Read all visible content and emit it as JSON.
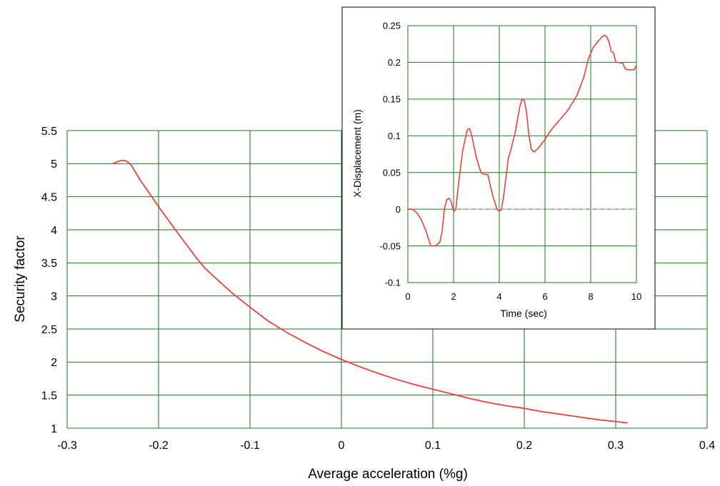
{
  "chart_data": [
    {
      "type": "line",
      "xlabel": "Average acceleration (%g)",
      "ylabel": "Security factor",
      "xlim": [
        -0.3,
        0.4
      ],
      "ylim": [
        1,
        5.5
      ],
      "x_ticks": [
        -0.3,
        -0.2,
        -0.1,
        0,
        0.1,
        0.2,
        0.3,
        0.4
      ],
      "x_tick_labels": [
        "-0.3",
        "-0.2",
        "-0.1",
        "0",
        "0.1",
        "0.2",
        "0.3",
        "0.4"
      ],
      "y_ticks": [
        1,
        1.5,
        2,
        2.5,
        3,
        3.5,
        4,
        4.5,
        5,
        5.5
      ],
      "y_tick_labels": [
        "1",
        "1.5",
        "2",
        "2.5",
        "3",
        "3.5",
        "4",
        "4.5",
        "5",
        "5.5"
      ],
      "grid": true,
      "grid_color": "#1a7a1a",
      "series": [
        {
          "color": "#e8413b",
          "x": [
            -0.25,
            -0.245,
            -0.24,
            -0.235,
            -0.23,
            -0.22,
            -0.21,
            -0.2,
            -0.18,
            -0.16,
            -0.15,
            -0.14,
            -0.12,
            -0.1,
            -0.08,
            -0.06,
            -0.04,
            -0.02,
            0,
            0.02,
            0.04,
            0.06,
            0.08,
            0.1,
            0.12,
            0.14,
            0.16,
            0.18,
            0.2,
            0.22,
            0.24,
            0.26,
            0.28,
            0.3,
            0.313
          ],
          "y": [
            5.0,
            5.03,
            5.05,
            5.04,
            4.98,
            4.75,
            4.55,
            4.35,
            3.97,
            3.6,
            3.43,
            3.3,
            3.05,
            2.83,
            2.62,
            2.45,
            2.3,
            2.16,
            2.04,
            1.93,
            1.83,
            1.74,
            1.66,
            1.59,
            1.52,
            1.45,
            1.39,
            1.34,
            1.3,
            1.25,
            1.21,
            1.17,
            1.13,
            1.1,
            1.08
          ]
        }
      ]
    },
    {
      "type": "line",
      "xlabel": "Time (sec)",
      "ylabel": "X-Displacement (m)",
      "xlim": [
        0,
        10
      ],
      "ylim": [
        -0.1,
        0.25
      ],
      "x_ticks": [
        0,
        2,
        4,
        6,
        8,
        10
      ],
      "x_tick_labels": [
        "0",
        "2",
        "4",
        "6",
        "8",
        "10"
      ],
      "y_ticks": [
        -0.1,
        -0.05,
        0,
        0.05,
        0.1,
        0.15,
        0.2,
        0.25
      ],
      "y_tick_labels": [
        "-0.1",
        "-0.05",
        "0",
        "0.05",
        "0.1",
        "0.15",
        "0.2",
        "0.25"
      ],
      "grid": true,
      "grid_color": "#1a7a1a",
      "series": [
        {
          "color": "#e8413b",
          "x": [
            0,
            0.2,
            0.4,
            0.6,
            0.8,
            1.0,
            1.2,
            1.4,
            1.5,
            1.6,
            1.7,
            1.8,
            1.9,
            2.0,
            2.1,
            2.2,
            2.3,
            2.4,
            2.6,
            2.7,
            2.8,
            3.0,
            3.2,
            3.3,
            3.5,
            3.7,
            3.8,
            3.9,
            4.0,
            4.1,
            4.2,
            4.3,
            4.4,
            4.5,
            4.7,
            4.9,
            5.0,
            5.1,
            5.2,
            5.3,
            5.4,
            5.5,
            5.6,
            5.7,
            5.8,
            6.0,
            6.2,
            6.4,
            6.6,
            7.0,
            7.4,
            7.7,
            7.9,
            8.0,
            8.1,
            8.3,
            8.5,
            8.6,
            8.7,
            8.8,
            8.9,
            9.0,
            9.1,
            9.2,
            9.4,
            9.5,
            9.6,
            9.8,
            9.9,
            10.0
          ],
          "y": [
            0.0,
            0.0,
            -0.005,
            -0.015,
            -0.03,
            -0.05,
            -0.05,
            -0.045,
            -0.03,
            0.0,
            0.013,
            0.015,
            0.01,
            -0.003,
            0.0,
            0.03,
            0.055,
            0.08,
            0.108,
            0.11,
            0.1,
            0.07,
            0.05,
            0.048,
            0.047,
            0.02,
            0.01,
            0.0,
            -0.003,
            0.0,
            0.02,
            0.045,
            0.07,
            0.08,
            0.105,
            0.14,
            0.15,
            0.148,
            0.13,
            0.1,
            0.082,
            0.078,
            0.08,
            0.083,
            0.087,
            0.095,
            0.105,
            0.113,
            0.12,
            0.135,
            0.155,
            0.18,
            0.205,
            0.212,
            0.22,
            0.228,
            0.235,
            0.237,
            0.235,
            0.228,
            0.215,
            0.213,
            0.2,
            0.2,
            0.199,
            0.192,
            0.19,
            0.19,
            0.19,
            0.196
          ]
        }
      ]
    }
  ]
}
